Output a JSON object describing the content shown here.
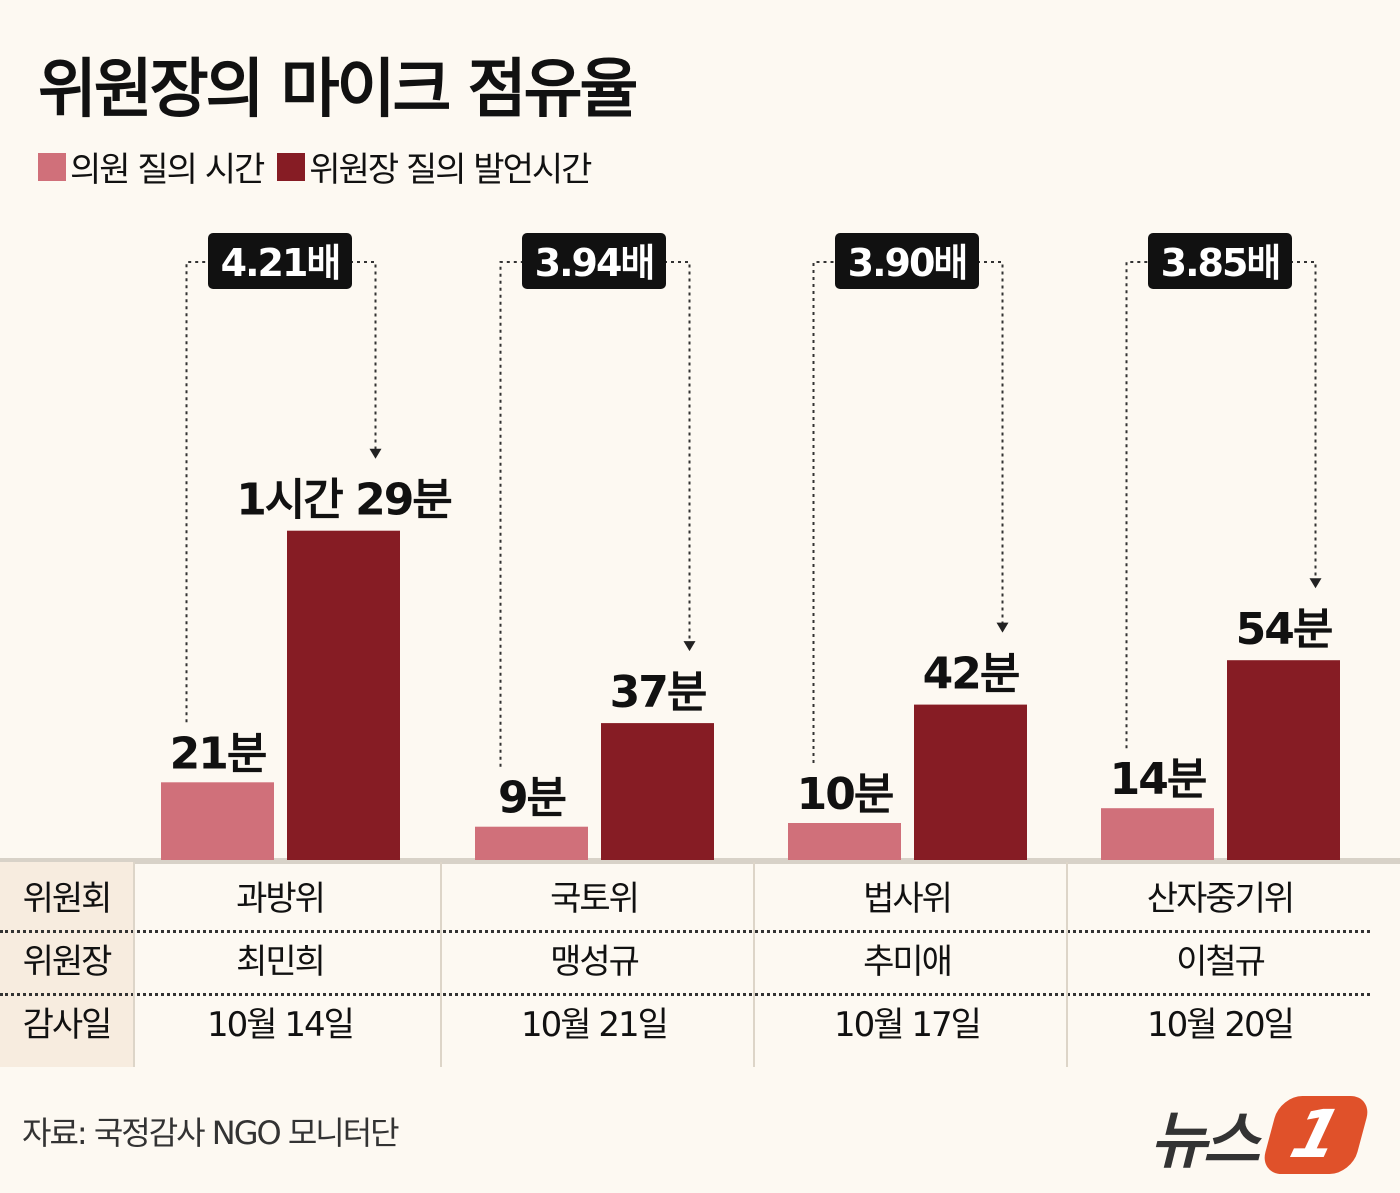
{
  "chart_data": {
    "type": "bar",
    "title": "위원장의 마이크 점유율",
    "categories": [
      "과방위",
      "국토위",
      "법사위",
      "산자중기위"
    ],
    "series": [
      {
        "name": "의원 질의 시간",
        "color": "#d0707a",
        "values": [
          21,
          9,
          10,
          14
        ],
        "labels": [
          "21분",
          "9분",
          "10분",
          "14분"
        ]
      },
      {
        "name": "위원장 질의 발언시간",
        "color": "#861c24",
        "values": [
          89,
          37,
          42,
          54
        ],
        "labels": [
          "1시간 29분",
          "37분",
          "42분",
          "54분"
        ]
      }
    ],
    "ratios": [
      "4.21배",
      "3.94배",
      "3.90배",
      "3.85배"
    ],
    "ylabel": "",
    "xlabel": "",
    "unit": "분"
  },
  "table": {
    "row_headers": [
      "위원회",
      "위원장",
      "감사일"
    ],
    "committees": [
      "과방위",
      "국토위",
      "법사위",
      "산자중기위"
    ],
    "chairs": [
      "최민희",
      "맹성규",
      "추미애",
      "이철규"
    ],
    "dates": [
      "10월 14일",
      "10월 21일",
      "10월 17일",
      "10월 20일"
    ]
  },
  "source": "자료: 국정감사 NGO 모니터단",
  "logo": "뉴스1"
}
